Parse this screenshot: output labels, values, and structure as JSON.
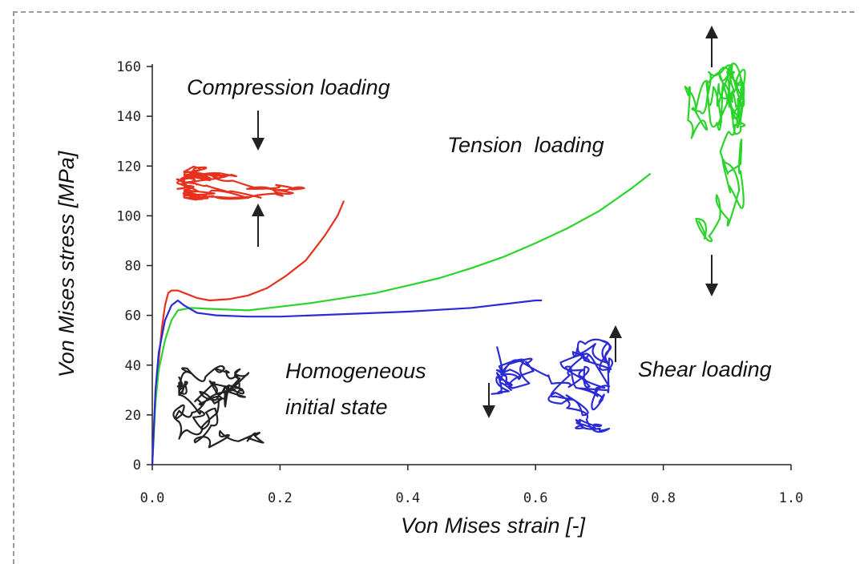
{
  "chart_data": {
    "type": "line",
    "xlabel": "Von Mises strain [-]",
    "ylabel": "Von Mises stress [MPa]",
    "xlim": [
      0,
      1.0
    ],
    "ylim": [
      0,
      160
    ],
    "x_ticks": [
      "0.0",
      "0.2",
      "0.4",
      "0.6",
      "0.8",
      "1.0"
    ],
    "y_ticks": [
      "0",
      "20",
      "40",
      "60",
      "80",
      "100",
      "120",
      "140",
      "160"
    ],
    "grid": false,
    "series": [
      {
        "color": "#e8301c",
        "x": [
          0,
          0.005,
          0.01,
          0.015,
          0.02,
          0.025,
          0.03,
          0.04,
          0.05,
          0.07,
          0.09,
          0.12,
          0.15,
          0.18,
          0.21,
          0.24,
          0.27,
          0.29,
          0.3
        ],
        "y": [
          0,
          28,
          42,
          55,
          64,
          69,
          70,
          70,
          69,
          67,
          66,
          66.5,
          68,
          71,
          76,
          82,
          92,
          100,
          106
        ]
      },
      {
        "color": "#2bd42b",
        "x": [
          0,
          0.005,
          0.01,
          0.02,
          0.03,
          0.04,
          0.06,
          0.1,
          0.15,
          0.2,
          0.25,
          0.3,
          0.35,
          0.4,
          0.45,
          0.5,
          0.55,
          0.6,
          0.65,
          0.7,
          0.75,
          0.78
        ],
        "y": [
          0,
          25,
          38,
          50,
          58,
          62,
          63,
          62.5,
          62,
          63.5,
          65,
          67,
          69,
          72,
          75,
          79,
          83.5,
          89,
          95,
          102,
          111,
          117
        ]
      },
      {
        "color": "#2b2bd6",
        "x": [
          0,
          0.005,
          0.01,
          0.02,
          0.03,
          0.04,
          0.05,
          0.07,
          0.1,
          0.15,
          0.2,
          0.3,
          0.4,
          0.5,
          0.55,
          0.6,
          0.61
        ],
        "y": [
          0,
          30,
          45,
          58,
          64,
          66,
          64,
          61,
          60,
          59.5,
          59.5,
          60.5,
          61.5,
          63,
          64.5,
          66,
          66
        ]
      }
    ],
    "annotations": [
      "Compression loading",
      "Tension  loading",
      "Homogeneous",
      "initial state",
      "Shear loading"
    ]
  }
}
